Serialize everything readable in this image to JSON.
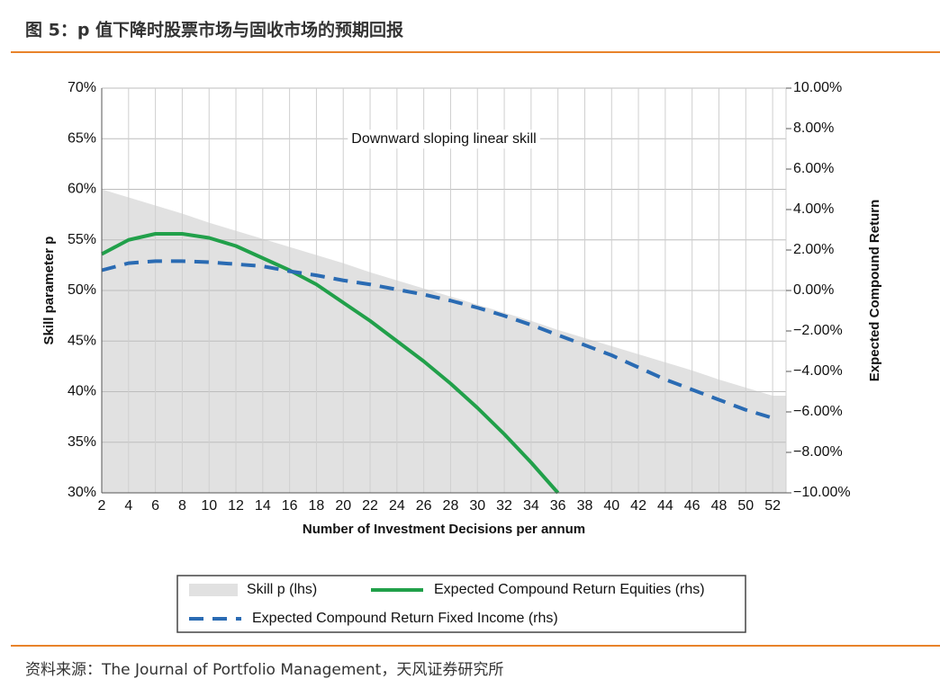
{
  "header": {
    "title": "图 5：p 值下降时股票市场与固收市场的预期回报"
  },
  "chart_data": {
    "type": "line",
    "annotation": "Downward sloping linear skill",
    "xlabel": "Number of Investment Decisions per annum",
    "ylabel": "Skill parameter p",
    "y2label": "Expected Compound Return",
    "x": [
      2,
      4,
      6,
      8,
      10,
      12,
      14,
      16,
      18,
      20,
      22,
      24,
      26,
      28,
      30,
      32,
      34,
      36,
      38,
      40,
      42,
      44,
      46,
      48,
      50,
      52
    ],
    "xlim": [
      2,
      53
    ],
    "xticks": [
      2,
      4,
      6,
      8,
      10,
      12,
      14,
      16,
      18,
      20,
      22,
      24,
      26,
      28,
      30,
      32,
      34,
      36,
      38,
      40,
      42,
      44,
      46,
      48,
      50,
      52
    ],
    "ylim": [
      30,
      70
    ],
    "yticks": [
      {
        "value": 30,
        "label": "30%"
      },
      {
        "value": 35,
        "label": "35%"
      },
      {
        "value": 40,
        "label": "40%"
      },
      {
        "value": 45,
        "label": "45%"
      },
      {
        "value": 50,
        "label": "50%"
      },
      {
        "value": 55,
        "label": "55%"
      },
      {
        "value": 60,
        "label": "60%"
      },
      {
        "value": 65,
        "label": "65%"
      },
      {
        "value": 70,
        "label": "70%"
      }
    ],
    "y2lim": [
      -10,
      10
    ],
    "y2ticks": [
      {
        "value": -10,
        "label": "−10.00%"
      },
      {
        "value": -8,
        "label": "−8.00%"
      },
      {
        "value": -6,
        "label": "−6.00%"
      },
      {
        "value": -4,
        "label": "−4.00%"
      },
      {
        "value": -2,
        "label": "−2.00%"
      },
      {
        "value": 0,
        "label": "0.00%"
      },
      {
        "value": 2,
        "label": "2.00%"
      },
      {
        "value": 4,
        "label": "4.00%"
      },
      {
        "value": 6,
        "label": "6.00%"
      },
      {
        "value": 8,
        "label": "8.00%"
      },
      {
        "value": 10,
        "label": "10.00%"
      }
    ],
    "grid": true,
    "series": [
      {
        "name": "Skill p (lhs)",
        "kind": "area",
        "color": "#e1e1e1",
        "values": [
          60,
          59.2,
          58.4,
          57.6,
          56.7,
          55.9,
          55.1,
          54.3,
          53.5,
          52.7,
          51.8,
          51.0,
          50.2,
          49.4,
          48.6,
          47.8,
          47.0,
          46.1,
          45.3,
          44.5,
          43.7,
          42.9,
          42.1,
          41.2,
          40.4,
          39.6
        ]
      },
      {
        "name": "Expected Compound Return Equities (rhs)",
        "kind": "line",
        "color": "#21a04a",
        "axis": "y2",
        "values": [
          1.8,
          2.5,
          2.8,
          2.8,
          2.6,
          2.2,
          1.6,
          1.0,
          0.3,
          -0.6,
          -1.5,
          -2.5,
          -3.5,
          -4.6,
          -5.8,
          -7.1,
          -8.5,
          -10.0,
          null,
          null,
          null,
          null,
          null,
          null,
          null,
          null
        ]
      },
      {
        "name": "Expected Compound Return Fixed Income (rhs)",
        "kind": "line",
        "dash": true,
        "color": "#2a6bb3",
        "axis": "y2",
        "values": [
          1.0,
          1.35,
          1.45,
          1.45,
          1.4,
          1.3,
          1.2,
          0.95,
          0.75,
          0.5,
          0.3,
          0.05,
          -0.2,
          -0.5,
          -0.85,
          -1.25,
          -1.7,
          -2.2,
          -2.7,
          -3.2,
          -3.8,
          -4.4,
          -4.9,
          -5.4,
          -5.9,
          -6.3
        ]
      }
    ]
  },
  "footer": {
    "source": "资料来源：The Journal of Portfolio Management，天风证券研究所"
  }
}
